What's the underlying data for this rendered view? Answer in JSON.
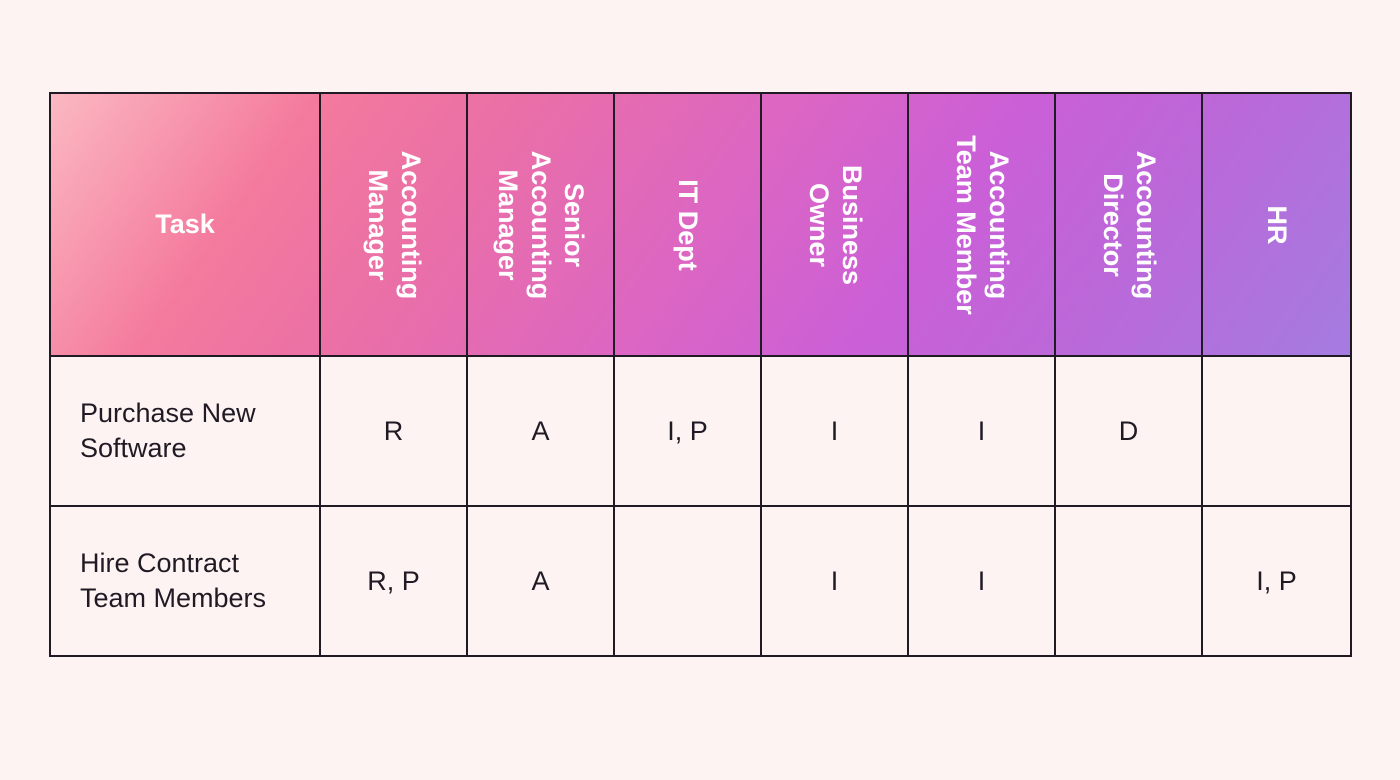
{
  "table": {
    "columns": [
      "Task",
      "Accounting Manager",
      "Senior Accounting Manager",
      "IT Dept",
      "Business Owner",
      "Accounting Team Member",
      "Accounting Director",
      "HR"
    ],
    "rows": [
      {
        "task": "Purchase New Software",
        "cells": [
          "R",
          "A",
          "I, P",
          "I",
          "I",
          "D",
          ""
        ]
      },
      {
        "task": "Hire Contract Team Members",
        "cells": [
          "R, P",
          "A",
          "",
          "I",
          "I",
          "",
          "I, P"
        ]
      }
    ]
  },
  "colors": {
    "background": "#fdf3f2",
    "border": "#1f1a24",
    "header_gradient_start": "#fbb8c2",
    "header_gradient_mid": "#dc66c2",
    "header_gradient_end": "#a47ce0"
  }
}
